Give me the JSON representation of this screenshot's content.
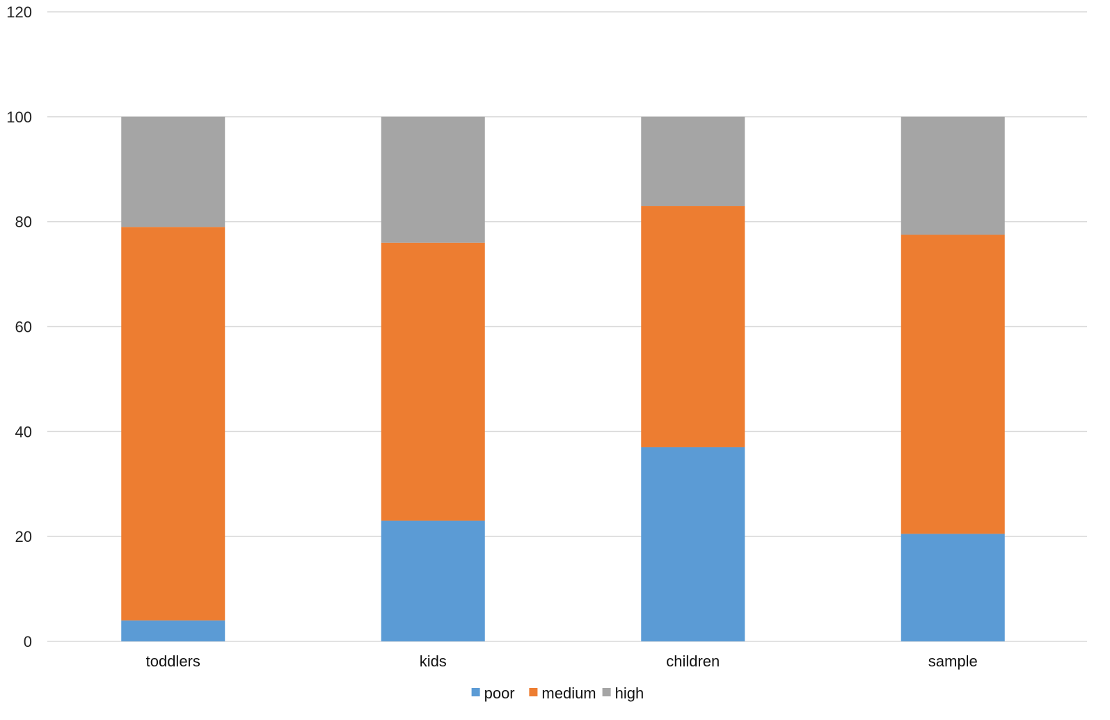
{
  "chart_data": {
    "type": "bar",
    "stacked": true,
    "categories": [
      "toddlers",
      "kids",
      "children",
      "sample"
    ],
    "series": [
      {
        "name": "poor",
        "values": [
          4,
          23,
          37,
          20.5
        ],
        "color": "#5b9bd5"
      },
      {
        "name": "medium",
        "values": [
          75,
          53,
          46,
          57
        ],
        "color": "#ed7d31"
      },
      {
        "name": "high",
        "values": [
          21,
          24,
          17,
          22.5
        ],
        "color": "#a5a5a5"
      }
    ],
    "ylim": [
      0,
      120
    ],
    "yticks": [
      0,
      20,
      40,
      60,
      80,
      100,
      120
    ],
    "xlabel": "",
    "ylabel": "",
    "grid": true,
    "legend_position": "bottom"
  }
}
